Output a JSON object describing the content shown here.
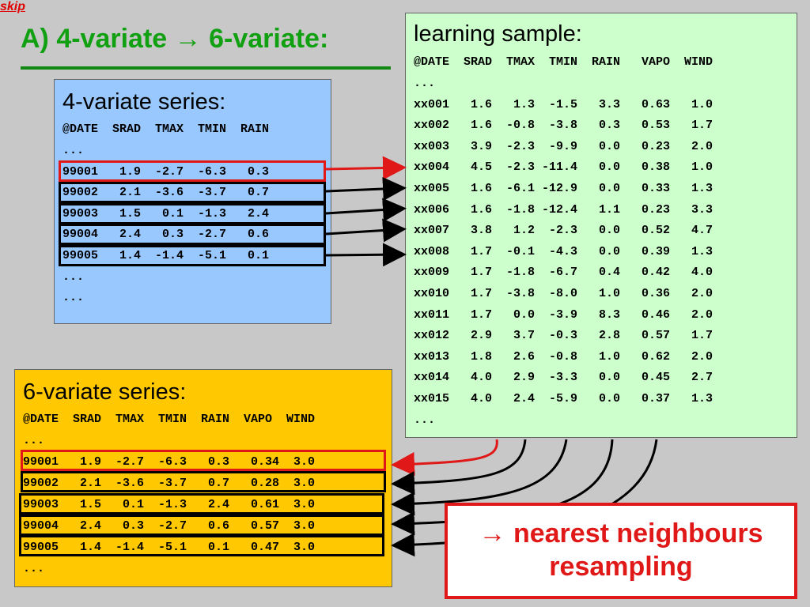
{
  "skip_label": "skip",
  "title": "A)  4-variate → 6-variate:",
  "four_variate": {
    "title": "4-variate series:",
    "header": "@DATE  SRAD  TMAX  TMIN  RAIN",
    "rows": [
      "...",
      "99001   1.9  -2.7  -6.3   0.3",
      "99002   2.1  -3.6  -3.7   0.7",
      "99003   1.5   0.1  -1.3   2.4",
      "99004   2.4   0.3  -2.7   0.6",
      "99005   1.4  -1.4  -5.1   0.1",
      "...",
      "..."
    ]
  },
  "learning_sample": {
    "title": "learning sample:",
    "header": "@DATE  SRAD  TMAX  TMIN  RAIN   VAPO  WIND",
    "rows": [
      "...",
      "xx001   1.6   1.3  -1.5   3.3   0.63   1.0",
      "xx002   1.6  -0.8  -3.8   0.3   0.53   1.7",
      "xx003   3.9  -2.3  -9.9   0.0   0.23   2.0",
      "xx004   4.5  -2.3 -11.4   0.0   0.38   1.0",
      "xx005   1.6  -6.1 -12.9   0.0   0.33   1.3",
      "xx006   1.6  -1.8 -12.4   1.1   0.23   3.3",
      "xx007   3.8   1.2  -2.3   0.0   0.52   4.7",
      "xx008   1.7  -0.1  -4.3   0.0   0.39   1.3",
      "xx009   1.7  -1.8  -6.7   0.4   0.42   4.0",
      "xx010   1.7  -3.8  -8.0   1.0   0.36   2.0",
      "xx011   1.7   0.0  -3.9   8.3   0.46   2.0",
      "xx012   2.9   3.7  -0.3   2.8   0.57   1.7",
      "xx013   1.8   2.6  -0.8   1.0   0.62   2.0",
      "xx014   4.0   2.9  -3.3   0.0   0.45   2.7",
      "xx015   4.0   2.4  -5.9   0.0   0.37   1.3",
      "..."
    ]
  },
  "six_variate": {
    "title": "6-variate series:",
    "header": "@DATE  SRAD  TMAX  TMIN  RAIN  VAPO  WIND",
    "rows": [
      "...",
      "99001   1.9  -2.7  -6.3   0.3   0.34  3.0",
      "99002   2.1  -3.6  -3.7   0.7   0.28  3.0",
      "99003   1.5   0.1  -1.3   2.4   0.61  3.0",
      "99004   2.4   0.3  -2.7   0.6   0.57  3.0",
      "99005   1.4  -1.4  -5.1   0.1   0.47  3.0",
      "..."
    ]
  },
  "callout": {
    "line1": "→ nearest neighbours",
    "line2": "resampling"
  },
  "colors": {
    "highlight": "#e01818",
    "frame": "#000000",
    "title": "#11a011"
  }
}
